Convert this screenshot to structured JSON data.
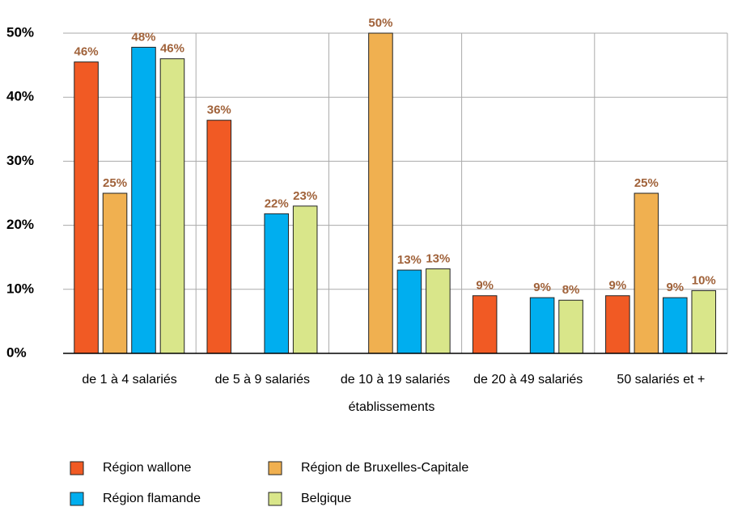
{
  "chart_data": {
    "type": "bar",
    "categories": [
      "de 1 à 4 salariés",
      "de 5 à 9 salariés",
      "de 10 à 19 salariés",
      "de 20 à 49 salariés",
      "50 salariés et +"
    ],
    "xlabel": "établissements",
    "series": [
      {
        "name": "Région wallone",
        "color": "#f15a24",
        "values": [
          45.5,
          36.4,
          null,
          9,
          9
        ],
        "value_labels": [
          "46%",
          "36%",
          null,
          "9%",
          "9%"
        ]
      },
      {
        "name": "Région de Bruxelles-Capitale",
        "color": "#f0b050",
        "values": [
          25,
          null,
          50,
          null,
          25
        ],
        "value_labels": [
          "25%",
          null,
          "50%",
          null,
          "25%"
        ]
      },
      {
        "name": "Région flamande",
        "color": "#00aeef",
        "values": [
          47.8,
          21.8,
          13,
          8.7,
          8.7
        ],
        "value_labels": [
          "48%",
          "22%",
          "13%",
          "9%",
          "9%"
        ]
      },
      {
        "name": "Belgique",
        "color": "#d9e68a",
        "values": [
          46,
          23,
          13.2,
          8.3,
          9.8
        ],
        "value_labels": [
          "46%",
          "23%",
          "13%",
          "8%",
          "10%"
        ]
      }
    ],
    "ylim": [
      0,
      50
    ],
    "yticks": [
      {
        "value": 0,
        "label": "0%"
      },
      {
        "value": 10,
        "label": "10%"
      },
      {
        "value": 20,
        "label": "20%"
      },
      {
        "value": 30,
        "label": "30%"
      },
      {
        "value": 40,
        "label": "40%"
      },
      {
        "value": 50,
        "label": "50%"
      }
    ],
    "grid": true
  }
}
